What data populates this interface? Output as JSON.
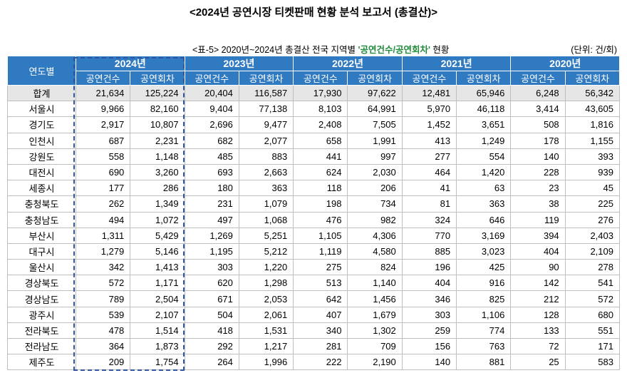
{
  "header": {
    "title": "<2024년 공연시장 티켓판매 현황 분석 보고서 (총결산)>"
  },
  "caption": {
    "prefix": "<표-5> 2020년~2024년 총결산 전국 지역별",
    "highlight": "'공연건수/공연회차'",
    "suffix": "현황",
    "unit": "(단위: 건/회)"
  },
  "table": {
    "corner": "연도별",
    "years": [
      "2024년",
      "2023년",
      "2022년",
      "2021년",
      "2020년"
    ],
    "subheaders": [
      "공연건수",
      "공연회차"
    ],
    "rows": [
      [
        "합계",
        "21,634",
        "125,224",
        "20,404",
        "116,587",
        "17,930",
        "97,622",
        "12,481",
        "65,946",
        "6,248",
        "56,342"
      ],
      [
        "서울시",
        "9,966",
        "82,160",
        "9,404",
        "77,138",
        "8,103",
        "64,991",
        "5,970",
        "46,118",
        "3,414",
        "43,605"
      ],
      [
        "경기도",
        "2,917",
        "10,807",
        "2,696",
        "9,477",
        "2,408",
        "7,505",
        "1,452",
        "3,651",
        "508",
        "1,816"
      ],
      [
        "인천시",
        "687",
        "2,231",
        "682",
        "2,077",
        "658",
        "1,991",
        "413",
        "1,249",
        "178",
        "1,155"
      ],
      [
        "강원도",
        "558",
        "1,148",
        "485",
        "883",
        "441",
        "997",
        "277",
        "554",
        "140",
        "393"
      ],
      [
        "대전시",
        "690",
        "3,260",
        "693",
        "2,663",
        "624",
        "2,030",
        "464",
        "1,420",
        "228",
        "939"
      ],
      [
        "세종시",
        "177",
        "286",
        "180",
        "363",
        "118",
        "206",
        "41",
        "63",
        "23",
        "45"
      ],
      [
        "충청북도",
        "262",
        "1,349",
        "231",
        "1,079",
        "198",
        "734",
        "81",
        "363",
        "38",
        "225"
      ],
      [
        "충청남도",
        "494",
        "1,072",
        "497",
        "1,068",
        "476",
        "982",
        "324",
        "646",
        "119",
        "276"
      ],
      [
        "부산시",
        "1,311",
        "5,429",
        "1,269",
        "5,251",
        "1,105",
        "4,306",
        "770",
        "3,169",
        "394",
        "2,403"
      ],
      [
        "대구시",
        "1,279",
        "5,146",
        "1,195",
        "5,212",
        "1,119",
        "4,580",
        "885",
        "3,023",
        "404",
        "2,109"
      ],
      [
        "울산시",
        "342",
        "1,413",
        "303",
        "1,220",
        "275",
        "824",
        "196",
        "425",
        "90",
        "278"
      ],
      [
        "경상북도",
        "572",
        "1,171",
        "620",
        "1,298",
        "513",
        "1,140",
        "404",
        "916",
        "142",
        "541"
      ],
      [
        "경상남도",
        "789",
        "2,504",
        "671",
        "2,053",
        "642",
        "1,456",
        "346",
        "825",
        "212",
        "572"
      ],
      [
        "광주시",
        "539",
        "2,107",
        "504",
        "2,061",
        "407",
        "1,679",
        "303",
        "1,106",
        "128",
        "680"
      ],
      [
        "전라북도",
        "478",
        "1,514",
        "418",
        "1,531",
        "340",
        "1,302",
        "259",
        "774",
        "133",
        "551"
      ],
      [
        "전라남도",
        "364",
        "1,873",
        "292",
        "1,217",
        "281",
        "709",
        "156",
        "763",
        "72",
        "171"
      ],
      [
        "제주도",
        "209",
        "1,754",
        "264",
        "1,996",
        "222",
        "2,190",
        "140",
        "881",
        "25",
        "583"
      ]
    ]
  }
}
